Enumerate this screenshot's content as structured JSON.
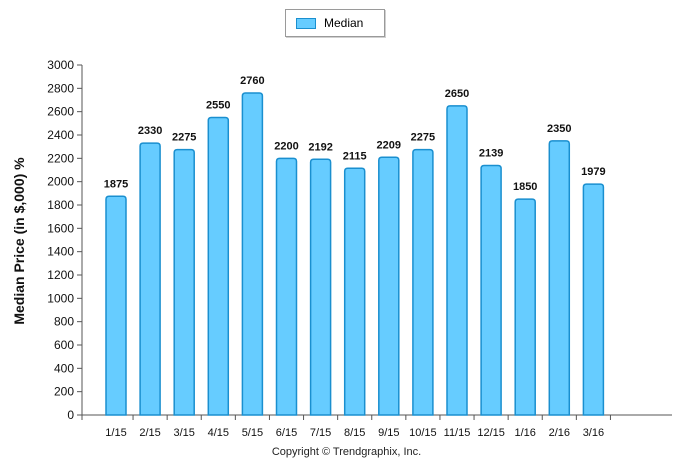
{
  "chart_data": {
    "type": "bar",
    "categories": [
      "1/15",
      "2/15",
      "3/15",
      "4/15",
      "5/15",
      "6/15",
      "7/15",
      "8/15",
      "9/15",
      "10/15",
      "11/15",
      "12/15",
      "1/16",
      "2/16",
      "3/16"
    ],
    "series": [
      {
        "name": "Median",
        "values": [
          1875,
          2330,
          2275,
          2550,
          2760,
          2200,
          2192,
          2115,
          2209,
          2275,
          2650,
          2139,
          1850,
          2350,
          1979
        ]
      }
    ],
    "value_labels": [
      "1875",
      "2330",
      "2275",
      "2550",
      "2760",
      "2200",
      "2192",
      "2115",
      "2209",
      "2275",
      "2650",
      "2139",
      "1850",
      "2350",
      "1979"
    ],
    "title": "",
    "xlabel": "",
    "ylabel": "Median Price (in $,000) %",
    "ylim": [
      0,
      3000
    ],
    "yticks": [
      0,
      200,
      400,
      600,
      800,
      1000,
      1200,
      1400,
      1600,
      1800,
      2000,
      2200,
      2400,
      2600,
      2800,
      3000
    ],
    "legend_position": "top-center",
    "grid": false,
    "colors": {
      "bar_fill": "#66ccff",
      "bar_stroke": "#1a8fcf",
      "axis": "#555555"
    }
  },
  "legend": {
    "label": "Median"
  },
  "footer": {
    "copyright": "Copyright © Trendgraphix, Inc."
  }
}
